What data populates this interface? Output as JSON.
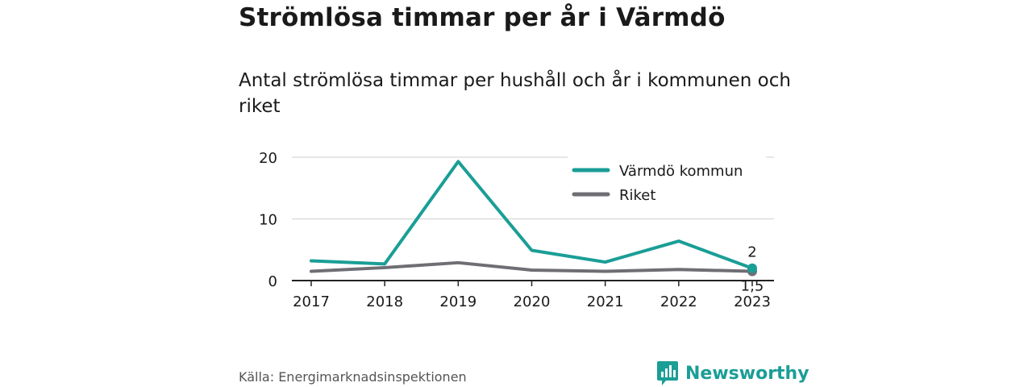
{
  "title": "Strömlösa timmar per år i Värmdö",
  "subtitle": "Antal strömlösa timmar per hushåll och år i kommunen och riket",
  "source": "Källa: Energimarknadsinspektionen",
  "brand": {
    "name": "Newsworthy",
    "logo_icon": "bar-chart-icon"
  },
  "colors": {
    "series_varmdo": "#1a9e96",
    "series_riket": "#6f6e74",
    "grid": "#dddddd",
    "axis": "#222222",
    "brand": "#1a9e96"
  },
  "chart_data": {
    "type": "line",
    "x": [
      2017,
      2018,
      2019,
      2020,
      2021,
      2022,
      2023
    ],
    "ylim": [
      0,
      20
    ],
    "yticks": [
      0,
      10,
      20
    ],
    "xtick_labels": [
      "2017",
      "2018",
      "2019",
      "2020",
      "2021",
      "2022",
      "2023"
    ],
    "ytick_labels": [
      "0",
      "10",
      "20"
    ],
    "grid": true,
    "legend": "top-right",
    "series": [
      {
        "name": "Värmdö kommun",
        "color": "#1a9e96",
        "values": [
          3.2,
          2.7,
          19.3,
          4.9,
          3.0,
          6.4,
          2.0
        ],
        "end_label": "2"
      },
      {
        "name": "Riket",
        "color": "#6f6e74",
        "values": [
          1.5,
          2.1,
          2.9,
          1.7,
          1.5,
          1.8,
          1.5
        ],
        "end_label": "1,5"
      }
    ]
  }
}
